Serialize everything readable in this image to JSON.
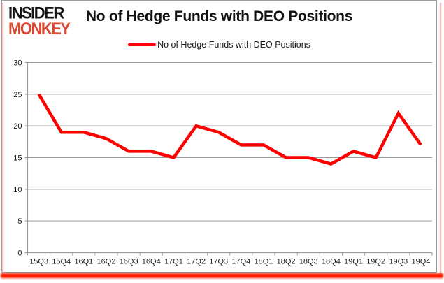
{
  "logo": {
    "line1": "INSIDER",
    "line2": "MONKEY"
  },
  "header": {
    "title": "No of Hedge Funds with DEO Positions"
  },
  "legend": {
    "label": "No of Hedge Funds with DEO Positions"
  },
  "colors": {
    "series_line": "#ff0000",
    "logo_red": "#d74a32",
    "grid_gray": "#9a9a9a",
    "axis_text": "#1a1a1a",
    "bottom_glow_red": "#ff1f00"
  },
  "chart_data": {
    "type": "line",
    "title": "No of Hedge Funds with DEO Positions",
    "categories": [
      "15Q3",
      "15Q4",
      "16Q1",
      "16Q2",
      "16Q3",
      "16Q4",
      "17Q1",
      "17Q2",
      "17Q3",
      "17Q4",
      "18Q1",
      "18Q2",
      "18Q3",
      "18Q4",
      "19Q1",
      "19Q2",
      "19Q3",
      "19Q4"
    ],
    "series": [
      {
        "name": "No of Hedge Funds with DEO Positions",
        "color": "#ff0000",
        "values": [
          25,
          19,
          19,
          18,
          16,
          16,
          15,
          20,
          19,
          17,
          17,
          15,
          15,
          14,
          16,
          15,
          22,
          17
        ]
      }
    ],
    "xlabel": "",
    "ylabel": "",
    "ylim": [
      0,
      30
    ],
    "ytick_step": 5,
    "grid": "horizontal",
    "legend_position": "top"
  }
}
